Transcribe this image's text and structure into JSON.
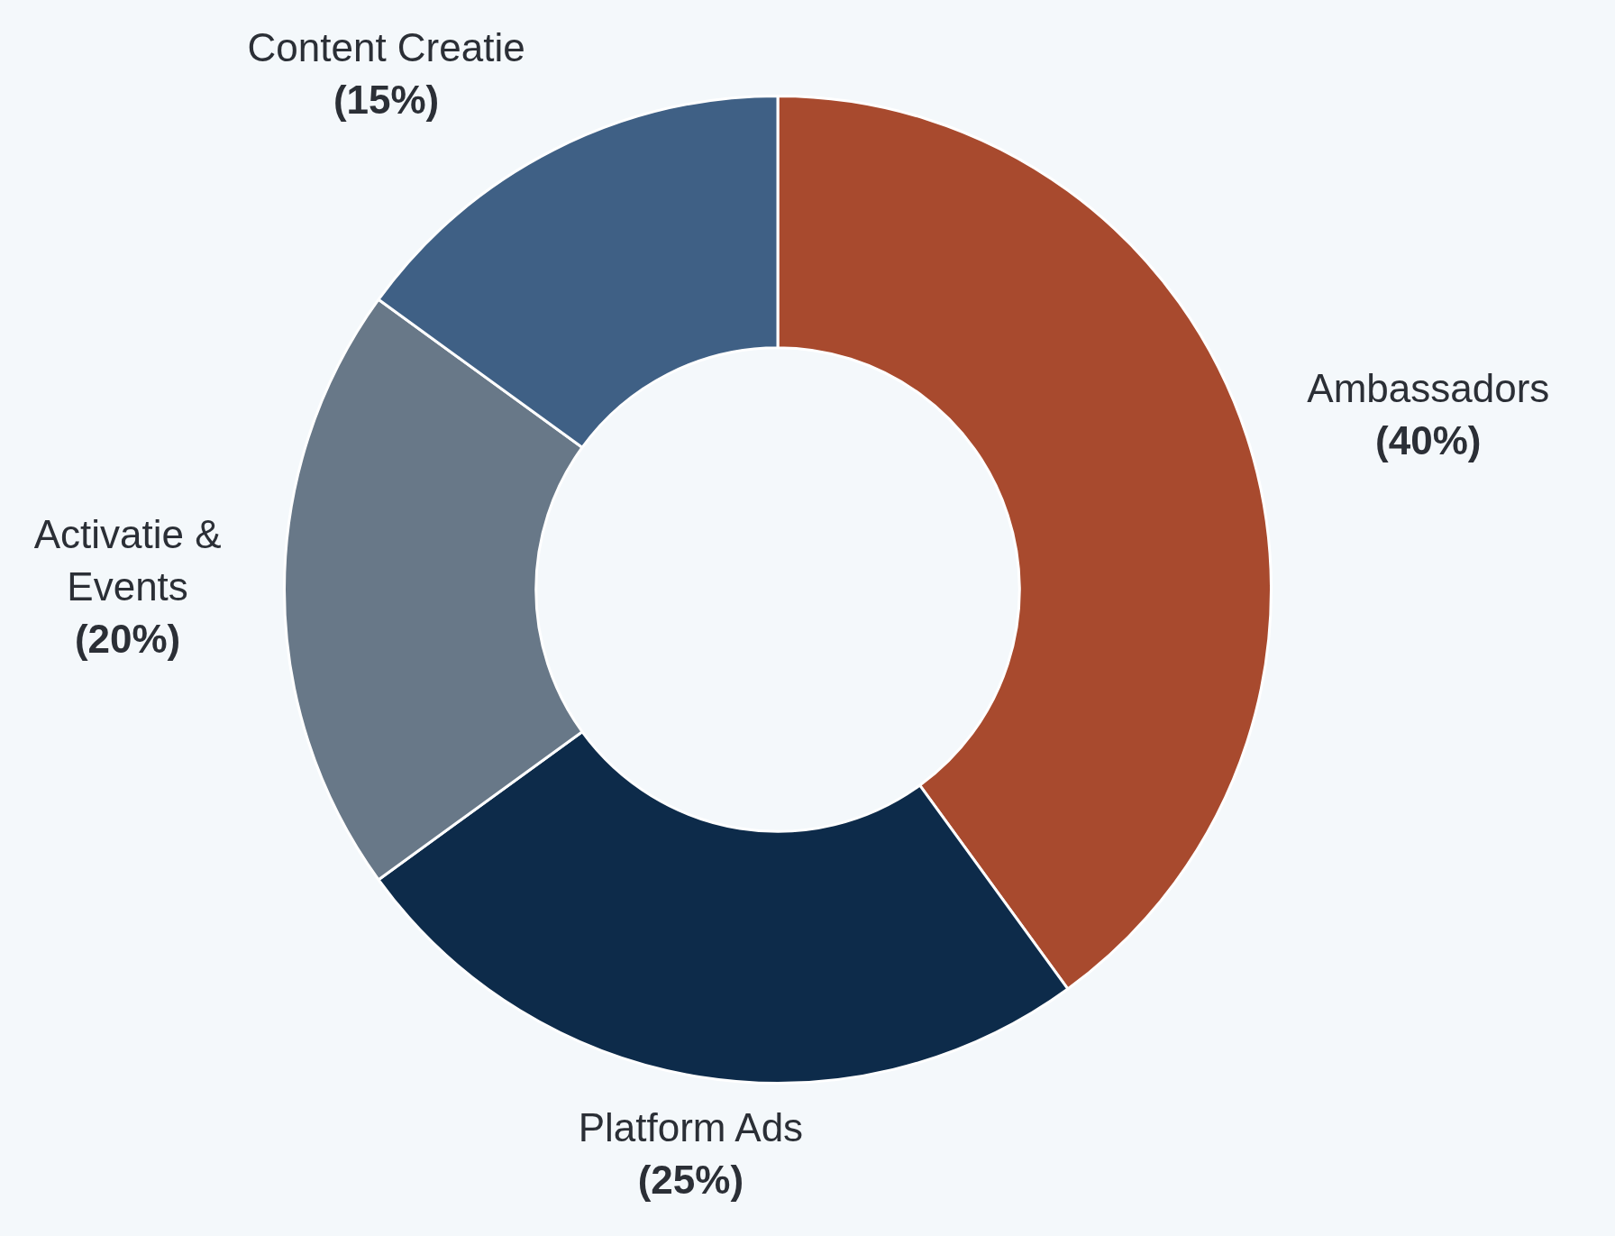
{
  "chart_data": {
    "type": "donut",
    "categories": [
      "Ambassadors",
      "Platform Ads",
      "Activatie & Events",
      "Content Creatie"
    ],
    "values": [
      40,
      25,
      20,
      15
    ],
    "value_labels": [
      "(40%)",
      "(25%)",
      "(20%)",
      "(15%)"
    ],
    "colors": [
      "#a84a2e",
      "#0d2b4a",
      "#687888",
      "#3f6085"
    ],
    "legend": false
  }
}
